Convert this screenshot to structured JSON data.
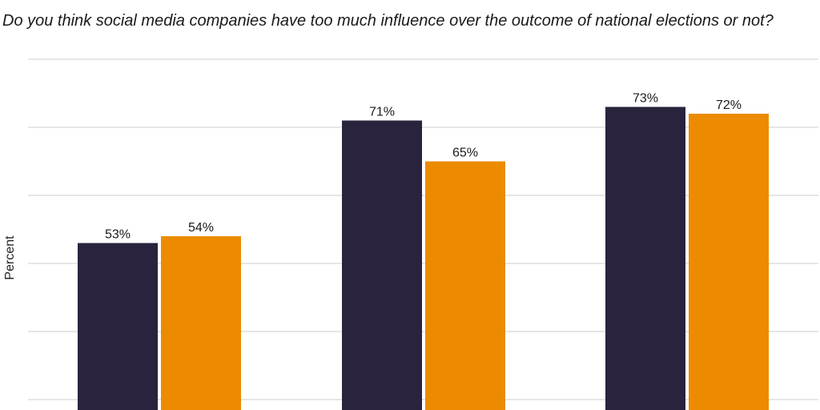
{
  "title": "Do you think social media companies have too much influence over the outcome of national elections or not?",
  "chart_data": {
    "type": "bar",
    "title": "Do you think social media companies have too much influence over the outcome of national elections or not?",
    "xlabel": "",
    "ylabel": "Percent",
    "categories": [
      "",
      "",
      ""
    ],
    "series": [
      {
        "values": [
          53,
          71,
          73
        ],
        "labels": [
          "53%",
          "71%",
          "73%"
        ],
        "color": "#29233d"
      },
      {
        "values": [
          54,
          65,
          72
        ],
        "labels": [
          "54%",
          "65%",
          "72%"
        ],
        "color": "#ec8b00"
      }
    ],
    "ylim": [
      0,
      80
    ],
    "grid": true,
    "legend": "none"
  }
}
